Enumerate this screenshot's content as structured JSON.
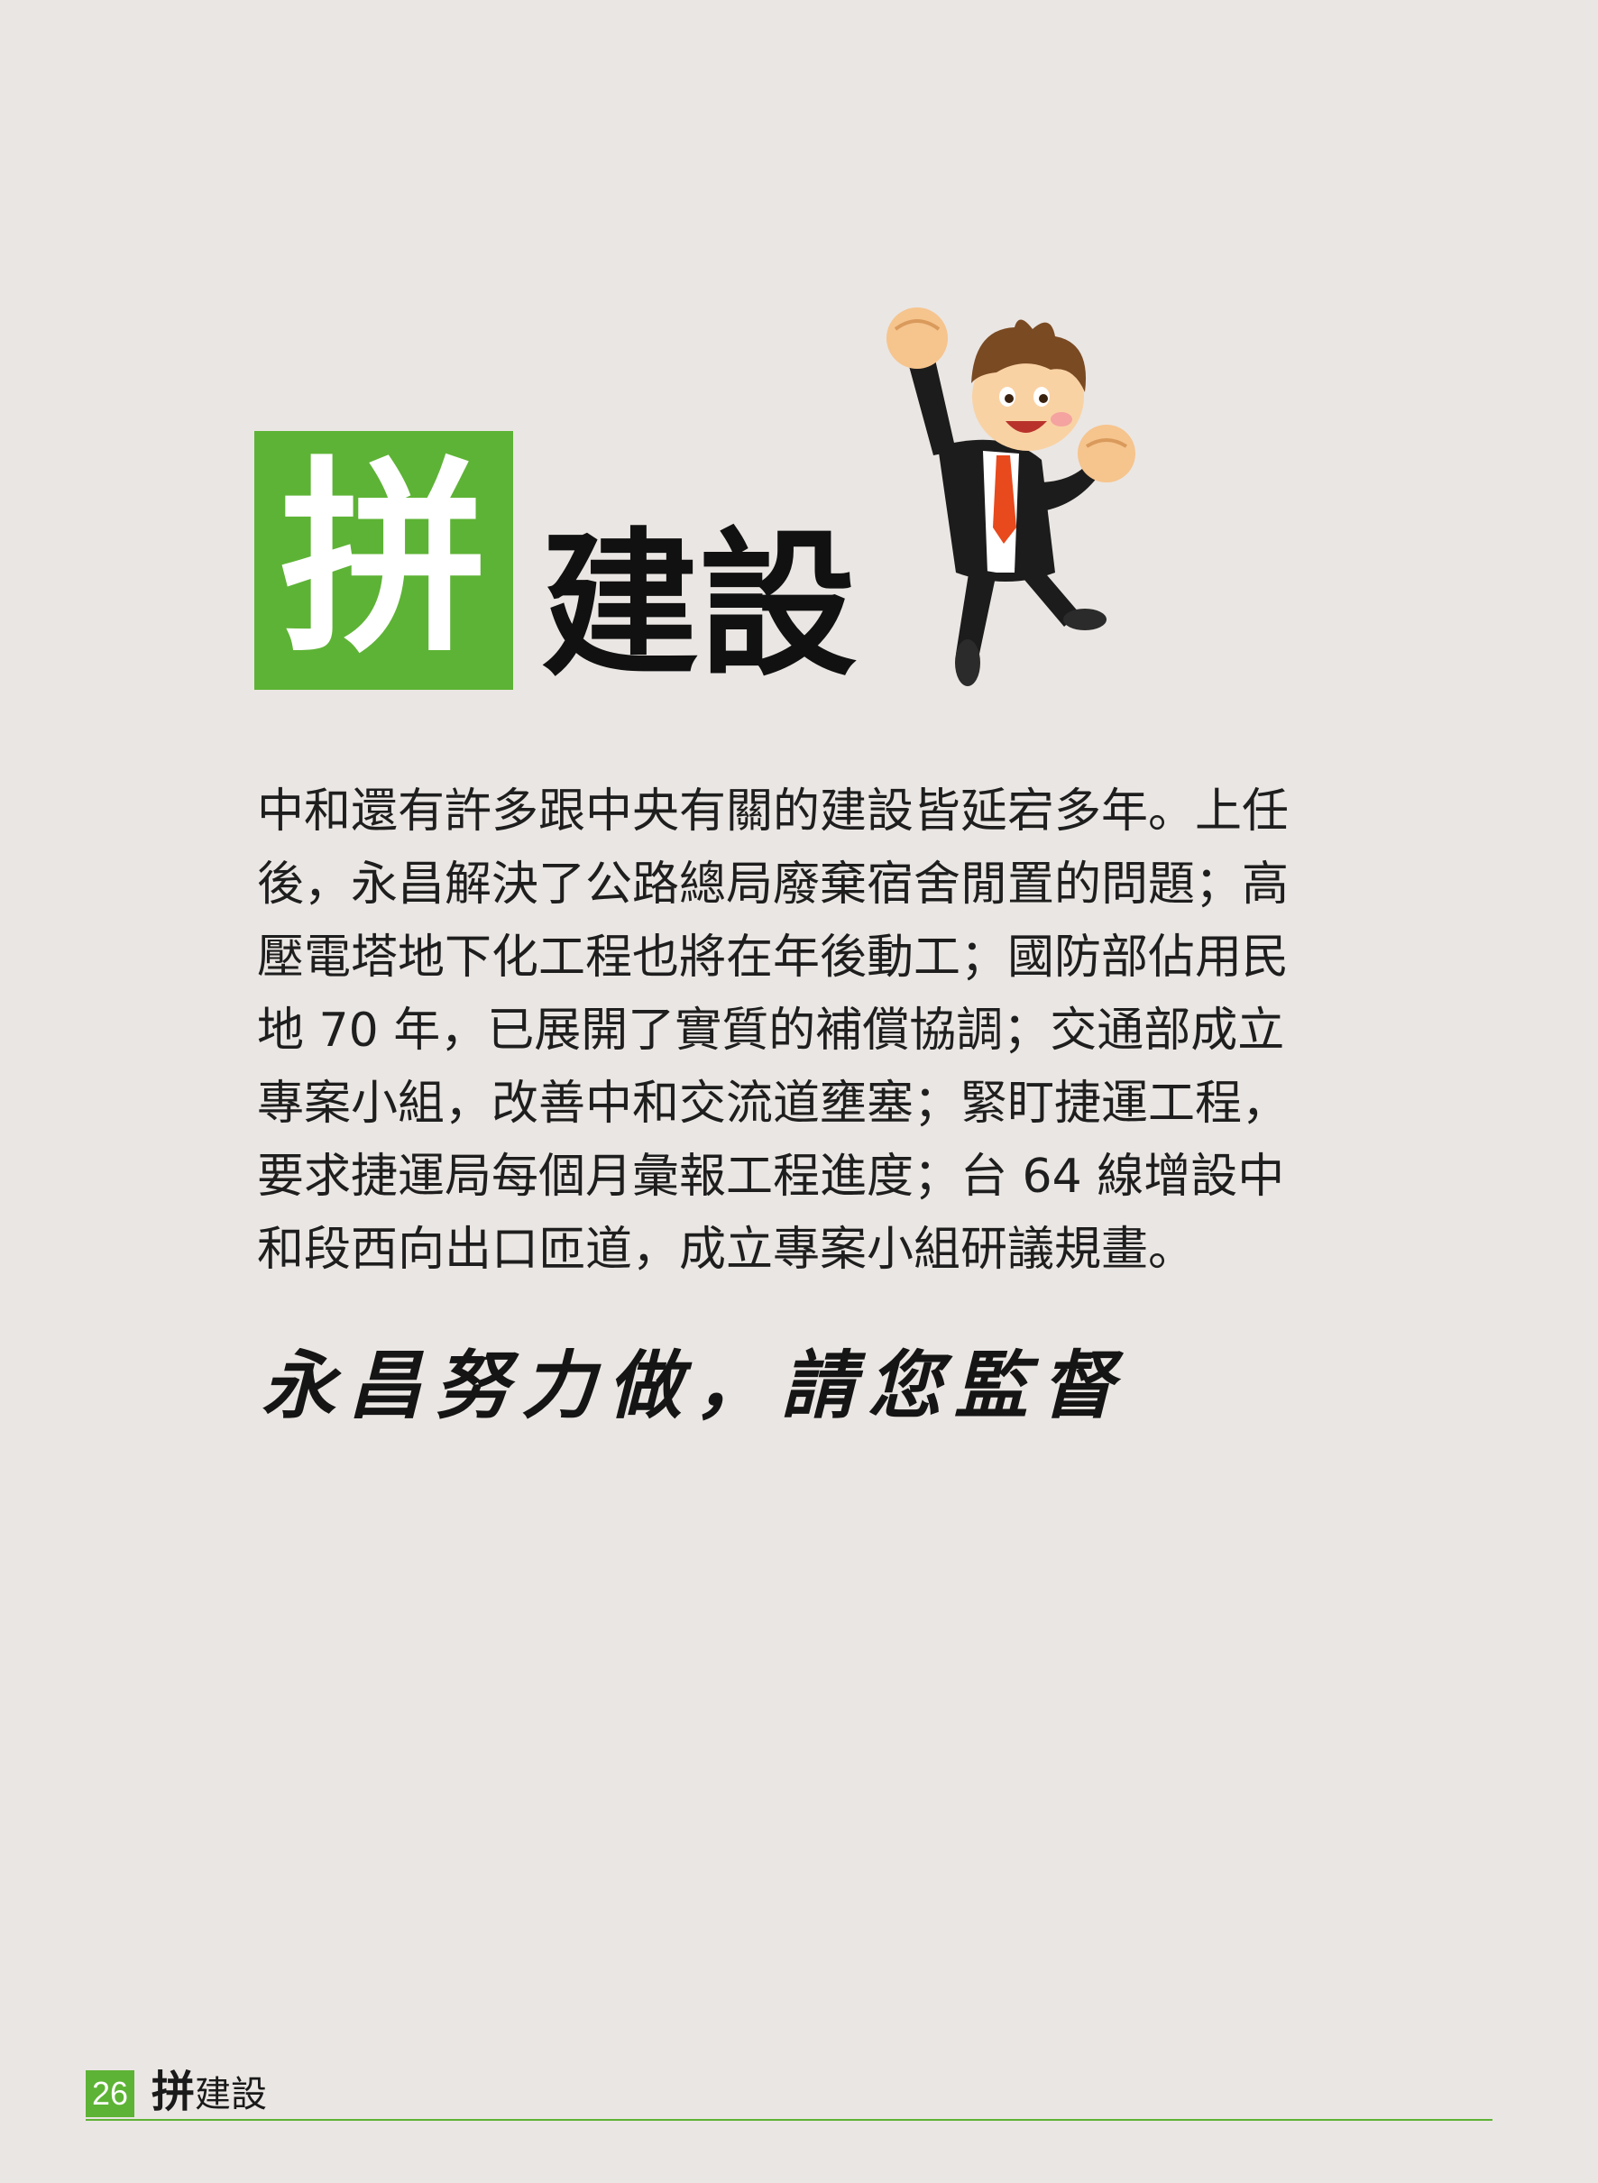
{
  "heading": {
    "box_char": "拼",
    "rest": "建設"
  },
  "body_lines": [
    "中和還有許多跟中央有關的建設皆延宕多年。上任",
    "後，永昌解決了公路總局廢棄宿舍閒置的問題；高",
    "壓電塔地下化工程也將在年後動工；國防部佔用民",
    "地 70 年，已展開了實質的補償協調；交通部成立",
    "專案小組，改善中和交流道壅塞；緊盯捷運工程，",
    "要求捷運局每個月彙報工程進度；台 64 線增設中",
    "和段西向出口匝道，成立專案小組研議規畫。"
  ],
  "slogan": "永昌努力做，請您監督",
  "footer": {
    "page_number": "26",
    "title_big": "拼",
    "title_rest": "建設"
  },
  "colors": {
    "accent": "#5db335",
    "background": "#eae6e3"
  },
  "icons": {
    "mascot": "cheering-businessman-cartoon"
  }
}
